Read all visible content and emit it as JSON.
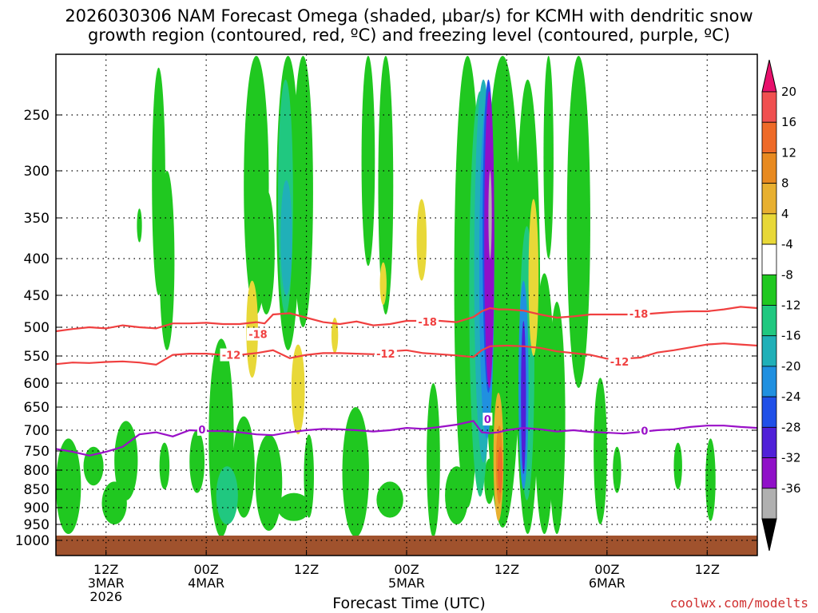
{
  "chart_data": {
    "type": "contour",
    "title": "2026030306 NAM Forecast Omega (shaded, µbar/s) for KCMH with dendritic snow\ngrowth region (contoured, red, ºC) and freezing level (contoured, purple, ºC)",
    "xlabel": "Forecast Time (UTC)",
    "ylabel": "",
    "y_axis": {
      "scale": "pressure",
      "units": "hPa",
      "ylim": [
        1000,
        200
      ],
      "ticks": [
        250,
        300,
        350,
        400,
        450,
        500,
        550,
        600,
        650,
        700,
        750,
        800,
        850,
        900,
        950,
        1000
      ]
    },
    "x_axis": {
      "xlim_hours": [
        6,
        90
      ],
      "ticks": [
        {
          "hour": 12,
          "lines": [
            "12Z",
            "3MAR",
            "2026"
          ]
        },
        {
          "hour": 24,
          "lines": [
            "00Z",
            "4MAR"
          ]
        },
        {
          "hour": 36,
          "lines": [
            "12Z"
          ]
        },
        {
          "hour": 48,
          "lines": [
            "00Z",
            "5MAR"
          ]
        },
        {
          "hour": 60,
          "lines": [
            "12Z"
          ]
        },
        {
          "hour": 72,
          "lines": [
            "00Z",
            "6MAR"
          ]
        },
        {
          "hour": 84,
          "lines": [
            "12Z"
          ]
        }
      ]
    },
    "colorbar": {
      "label": "µbar/s",
      "levels": [
        "20",
        "16",
        "12",
        "8",
        "4",
        "-4",
        "-8",
        "-12",
        "-16",
        "-20",
        "-24",
        "-28",
        "-32",
        "-36"
      ],
      "colors": [
        "#e8106c",
        "#f05050",
        "#ee6a28",
        "#e88a20",
        "#e8b030",
        "#e8d838",
        "#ffffff",
        "#20c820",
        "#20c880",
        "#20b0b8",
        "#2090e0",
        "#2050e8",
        "#5020d8",
        "#9010c8",
        "#b0b0b0",
        "#000000"
      ]
    },
    "series": [
      {
        "name": "-18 C isotherm",
        "color": "#f04040",
        "label": "-18",
        "x": [
          6,
          8,
          10,
          12,
          14,
          16,
          18,
          20,
          22,
          24,
          26,
          28,
          30,
          31,
          32,
          34,
          36,
          38,
          40,
          42,
          44,
          46,
          48,
          50,
          52,
          54,
          56,
          57,
          58,
          59,
          60,
          62,
          64,
          66,
          68,
          70,
          72,
          74,
          76,
          78,
          80,
          82,
          84,
          86,
          88,
          90
        ],
        "p": [
          507,
          503,
          500,
          502,
          497,
          500,
          502,
          494,
          494,
          493,
          495,
          495,
          492,
          494,
          480,
          478,
          485,
          492,
          495,
          491,
          497,
          495,
          490,
          490,
          490,
          492,
          484,
          475,
          470,
          472,
          472,
          474,
          480,
          485,
          483,
          480,
          480,
          480,
          480,
          478,
          476,
          475,
          475,
          472,
          468,
          470
        ]
      },
      {
        "name": "-12 C isotherm",
        "color": "#f04040",
        "label": "-12",
        "x": [
          6,
          8,
          10,
          12,
          14,
          16,
          18,
          20,
          22,
          24,
          26,
          28,
          30,
          32,
          34,
          36,
          38,
          40,
          42,
          44,
          46,
          48,
          50,
          52,
          54,
          56,
          57,
          58,
          60,
          62,
          64,
          66,
          68,
          70,
          72,
          74,
          76,
          78,
          80,
          82,
          84,
          86,
          88,
          90
        ],
        "p": [
          565,
          562,
          563,
          561,
          560,
          562,
          566,
          548,
          546,
          546,
          548,
          548,
          545,
          540,
          554,
          548,
          545,
          545,
          546,
          547,
          542,
          540,
          545,
          547,
          549,
          552,
          540,
          533,
          532,
          533,
          536,
          542,
          545,
          548,
          555,
          555,
          553,
          544,
          540,
          535,
          530,
          528,
          530,
          532
        ]
      },
      {
        "name": "0 C isotherm (freezing level)",
        "color": "#9a10c8",
        "label": "0",
        "x": [
          6,
          8,
          10,
          12,
          14,
          16,
          18,
          20,
          22,
          24,
          26,
          28,
          30,
          32,
          34,
          36,
          38,
          40,
          42,
          44,
          46,
          48,
          50,
          52,
          54,
          56,
          57,
          58,
          59,
          60,
          62,
          64,
          66,
          68,
          70,
          72,
          74,
          76,
          78,
          80,
          82,
          84,
          86,
          88,
          90
        ],
        "p": [
          745,
          752,
          762,
          752,
          740,
          710,
          705,
          715,
          700,
          702,
          702,
          705,
          710,
          712,
          705,
          700,
          697,
          698,
          700,
          703,
          700,
          695,
          697,
          693,
          688,
          680,
          705,
          707,
          705,
          700,
          695,
          698,
          703,
          700,
          704,
          706,
          708,
          704,
          700,
          698,
          693,
          690,
          690,
          693,
          695
        ]
      }
    ],
    "contour_labels": [
      {
        "text": "-18",
        "x": 30.2,
        "p": 512
      },
      {
        "text": "-12",
        "x": 27,
        "p": 548
      },
      {
        "text": "0",
        "x": 23.5,
        "p": 698
      },
      {
        "text": "-18",
        "x": 50.5,
        "p": 491
      },
      {
        "text": "-12",
        "x": 45.5,
        "p": 546
      },
      {
        "text": "0",
        "x": 57.7,
        "p": 676
      },
      {
        "text": "-18",
        "x": 75.8,
        "p": 479
      },
      {
        "text": "-12",
        "x": 73.5,
        "p": 560
      },
      {
        "text": "0",
        "x": 76.5,
        "p": 701
      }
    ],
    "terrain": {
      "color": "#a0522d",
      "surface_p": 985
    },
    "omega_features": [
      {
        "level": "-4",
        "x": 25.8,
        "p": 820,
        "rx": 1.5,
        "ry": 300
      },
      {
        "level": "-4",
        "x": 22.9,
        "p": 780,
        "rx": 0.9,
        "ry": 80
      },
      {
        "level": "-4",
        "x": 28.5,
        "p": 800,
        "rx": 1.3,
        "ry": 130
      },
      {
        "level": "-4",
        "x": 31.5,
        "p": 840,
        "rx": 1.6,
        "ry": 130
      },
      {
        "level": "-4",
        "x": 34.5,
        "p": 900,
        "rx": 2.0,
        "ry": 40
      },
      {
        "level": "-4",
        "x": 13.0,
        "p": 890,
        "rx": 1.5,
        "ry": 60
      },
      {
        "level": "-4",
        "x": 14.4,
        "p": 780,
        "rx": 1.4,
        "ry": 100
      },
      {
        "level": "-4",
        "x": 7.5,
        "p": 850,
        "rx": 1.5,
        "ry": 130
      },
      {
        "level": "-4",
        "x": 10.5,
        "p": 790,
        "rx": 1.2,
        "ry": 50
      },
      {
        "level": "-4",
        "x": 19.0,
        "p": 790,
        "rx": 0.6,
        "ry": 60
      },
      {
        "level": "-4",
        "x": 36.3,
        "p": 820,
        "rx": 0.6,
        "ry": 110
      },
      {
        "level": "-4",
        "x": 41.9,
        "p": 830,
        "rx": 1.6,
        "ry": 180
      },
      {
        "level": "-4",
        "x": 46.0,
        "p": 880,
        "rx": 1.6,
        "ry": 50
      },
      {
        "level": "-4",
        "x": 51.2,
        "p": 820,
        "rx": 0.8,
        "ry": 220
      },
      {
        "level": "-4",
        "x": 54.0,
        "p": 870,
        "rx": 1.4,
        "ry": 80
      },
      {
        "level": "-4",
        "x": 57.9,
        "p": 830,
        "rx": 0.6,
        "ry": 60
      },
      {
        "level": "-4",
        "x": 59.5,
        "p": 530,
        "rx": 2.2,
        "ry": 430
      },
      {
        "level": "-4",
        "x": 62.5,
        "p": 600,
        "rx": 1.5,
        "ry": 380
      },
      {
        "level": "-4",
        "x": 64.5,
        "p": 700,
        "rx": 1.2,
        "ry": 280
      },
      {
        "level": "-4",
        "x": 66.0,
        "p": 720,
        "rx": 1.0,
        "ry": 260
      },
      {
        "level": "-4",
        "x": 68.6,
        "p": 350,
        "rx": 1.4,
        "ry": 260
      },
      {
        "level": "-4",
        "x": 71.2,
        "p": 770,
        "rx": 0.8,
        "ry": 180
      },
      {
        "level": "-4",
        "x": 73.2,
        "p": 800,
        "rx": 0.5,
        "ry": 60
      },
      {
        "level": "-4",
        "x": 80.5,
        "p": 790,
        "rx": 0.5,
        "ry": 60
      },
      {
        "level": "-4",
        "x": 84.4,
        "p": 830,
        "rx": 0.6,
        "ry": 110
      },
      {
        "level": "-4",
        "x": 18.3,
        "p": 330,
        "rx": 0.8,
        "ry": 120
      },
      {
        "level": "-4",
        "x": 16.0,
        "p": 360,
        "rx": 0.3,
        "ry": 20
      },
      {
        "level": "-4",
        "x": 19.3,
        "p": 420,
        "rx": 0.9,
        "ry": 120
      },
      {
        "level": "-4",
        "x": 30.0,
        "p": 320,
        "rx": 1.5,
        "ry": 160
      },
      {
        "level": "-4",
        "x": 33.8,
        "p": 320,
        "rx": 1.4,
        "ry": 220
      },
      {
        "level": "-4",
        "x": 35.6,
        "p": 320,
        "rx": 1.2,
        "ry": 180
      },
      {
        "level": "-4",
        "x": 31.2,
        "p": 400,
        "rx": 1.0,
        "ry": 80
      },
      {
        "level": "-4",
        "x": 43.4,
        "p": 290,
        "rx": 0.8,
        "ry": 120
      },
      {
        "level": "-4",
        "x": 45.5,
        "p": 300,
        "rx": 0.9,
        "ry": 180
      },
      {
        "level": "-4",
        "x": 55.3,
        "p": 500,
        "rx": 1.6,
        "ry": 400
      },
      {
        "level": "-4",
        "x": 65.0,
        "p": 290,
        "rx": 0.6,
        "ry": 110
      },
      {
        "level": "-8",
        "x": 33.5,
        "p": 350,
        "rx": 0.9,
        "ry": 130
      },
      {
        "level": "-8",
        "x": 26.5,
        "p": 870,
        "rx": 1.3,
        "ry": 80
      },
      {
        "level": "-8",
        "x": 56.8,
        "p": 550,
        "rx": 1.3,
        "ry": 320
      },
      {
        "level": "-8",
        "x": 62.4,
        "p": 620,
        "rx": 0.9,
        "ry": 260
      },
      {
        "level": "-12",
        "x": 33.6,
        "p": 380,
        "rx": 0.7,
        "ry": 70
      },
      {
        "level": "-12",
        "x": 57.2,
        "p": 500,
        "rx": 1.1,
        "ry": 280
      },
      {
        "level": "-16",
        "x": 57.6,
        "p": 480,
        "rx": 0.9,
        "ry": 240
      },
      {
        "level": "-16",
        "x": 62.0,
        "p": 640,
        "rx": 0.6,
        "ry": 210
      },
      {
        "level": "-20",
        "x": 57.8,
        "p": 420,
        "rx": 0.7,
        "ry": 200
      },
      {
        "level": "-24",
        "x": 62.0,
        "p": 650,
        "rx": 0.3,
        "ry": 160
      },
      {
        "level": "-28",
        "x": 57.9,
        "p": 420,
        "rx": 0.6,
        "ry": 190
      },
      {
        "level": "-32",
        "x": 58.0,
        "p": 350,
        "rx": 0.2,
        "ry": 50
      },
      {
        "level": "4",
        "x": 29.5,
        "p": 510,
        "rx": 0.7,
        "ry": 80
      },
      {
        "level": "4",
        "x": 35.0,
        "p": 620,
        "rx": 0.8,
        "ry": 90
      },
      {
        "level": "4",
        "x": 39.4,
        "p": 515,
        "rx": 0.4,
        "ry": 30
      },
      {
        "level": "4",
        "x": 45.2,
        "p": 435,
        "rx": 0.4,
        "ry": 30
      },
      {
        "level": "4",
        "x": 49.8,
        "p": 380,
        "rx": 0.6,
        "ry": 50
      },
      {
        "level": "4",
        "x": 63.2,
        "p": 440,
        "rx": 0.6,
        "ry": 110
      },
      {
        "level": "8",
        "x": 59.0,
        "p": 780,
        "rx": 0.6,
        "ry": 160
      },
      {
        "level": "12",
        "x": 59.1,
        "p": 790,
        "rx": 0.4,
        "ry": 100
      },
      {
        "level": "16",
        "x": 59.2,
        "p": 800,
        "rx": 0.3,
        "ry": 60
      }
    ]
  },
  "footer": {
    "credit": "coolwx.com/modelts"
  }
}
